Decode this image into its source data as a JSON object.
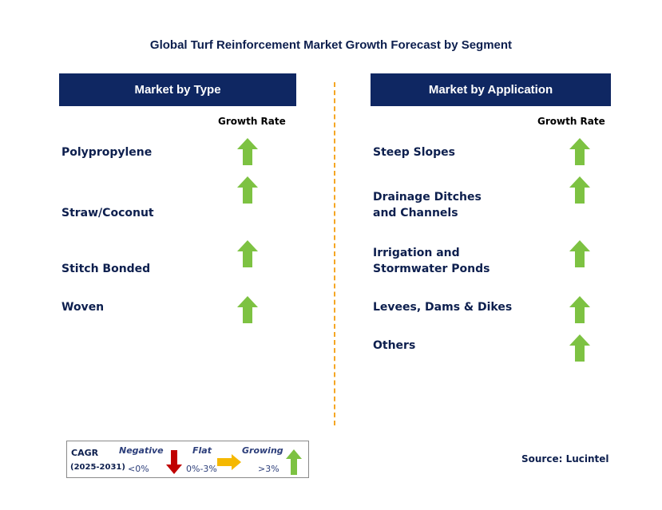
{
  "title": "Global Turf Reinforcement Market Growth Forecast by Segment",
  "left_panel": {
    "header": "Market by Type",
    "growth_rate_label": "Growth Rate",
    "items": [
      {
        "label": "Polypropylene",
        "trend": "growing"
      },
      {
        "label": "Straw/Coconut",
        "trend": "growing"
      },
      {
        "label": "Stitch Bonded",
        "trend": "growing"
      },
      {
        "label": "Woven",
        "trend": "growing"
      }
    ]
  },
  "right_panel": {
    "header": "Market by Application",
    "growth_rate_label": "Growth Rate",
    "items": [
      {
        "label": "Steep Slopes",
        "trend": "growing"
      },
      {
        "label": "Drainage Ditches and Channels",
        "trend": "growing"
      },
      {
        "label": "Irrigation and Stormwater Ponds",
        "trend": "growing"
      },
      {
        "label": "Levees, Dams & Dikes",
        "trend": "growing"
      },
      {
        "label": "Others",
        "trend": "growing"
      }
    ]
  },
  "legend": {
    "cagr": "CAGR",
    "period": "(2025-2031)",
    "negative": "Negative",
    "negative_range": "<0%",
    "flat": "Flat",
    "flat_range": "0%-3%",
    "growing": "Growing",
    "growing_range": ">3%"
  },
  "source": "Source: Lucintel",
  "colors": {
    "header_bg": "#0f2762",
    "text": "#0d1f4e",
    "divider": "#f5a623",
    "growing_arrow": "#7dc242",
    "negative_arrow": "#c00000",
    "flat_arrow": "#f5b800"
  }
}
